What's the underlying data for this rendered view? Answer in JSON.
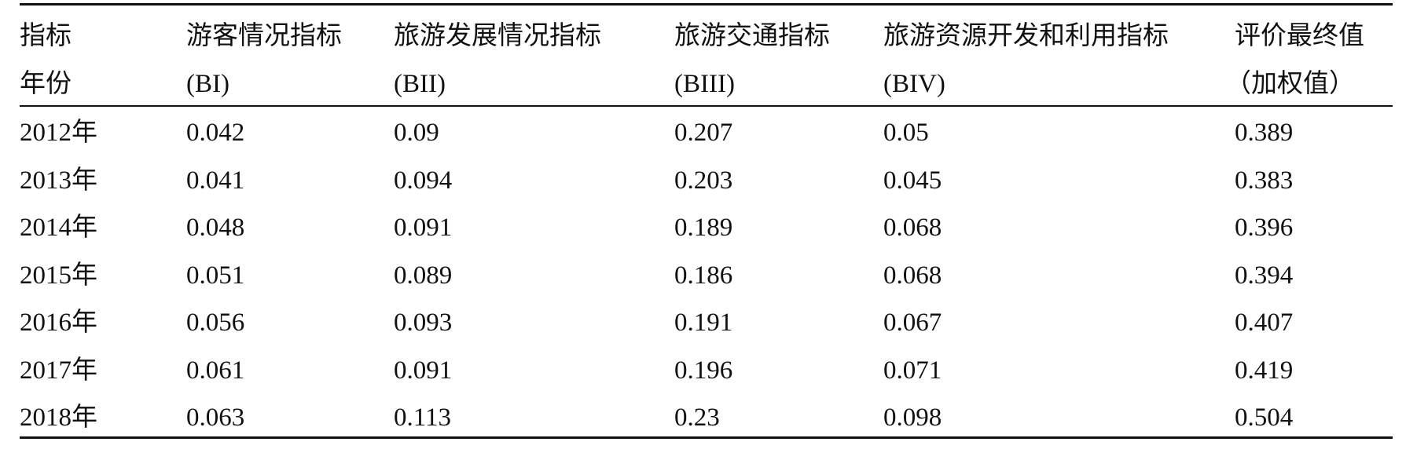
{
  "table": {
    "header": [
      [
        "指标",
        "游客情况指标",
        "旅游发展情况指标",
        "旅游交通指标",
        "旅游资源开发和利用指标",
        "评价最终值"
      ],
      [
        "年份",
        "(BI)",
        "(BII)",
        "(BIII)",
        "(BIV)",
        "（加权值）"
      ]
    ],
    "rows": [
      [
        "2012年",
        "0.042",
        "0.09",
        "0.207",
        "0.05",
        "0.389"
      ],
      [
        "2013年",
        "0.041",
        "0.094",
        "0.203",
        "0.045",
        "0.383"
      ],
      [
        "2014年",
        "0.048",
        "0.091",
        "0.189",
        "0.068",
        "0.396"
      ],
      [
        "2015年",
        "0.051",
        "0.089",
        "0.186",
        "0.068",
        "0.394"
      ],
      [
        "2016年",
        "0.056",
        "0.093",
        "0.191",
        "0.067",
        "0.407"
      ],
      [
        "2017年",
        "0.061",
        "0.091",
        "0.196",
        "0.071",
        "0.419"
      ],
      [
        "2018年",
        "0.063",
        "0.113",
        "0.23",
        "0.098",
        "0.504"
      ]
    ]
  }
}
